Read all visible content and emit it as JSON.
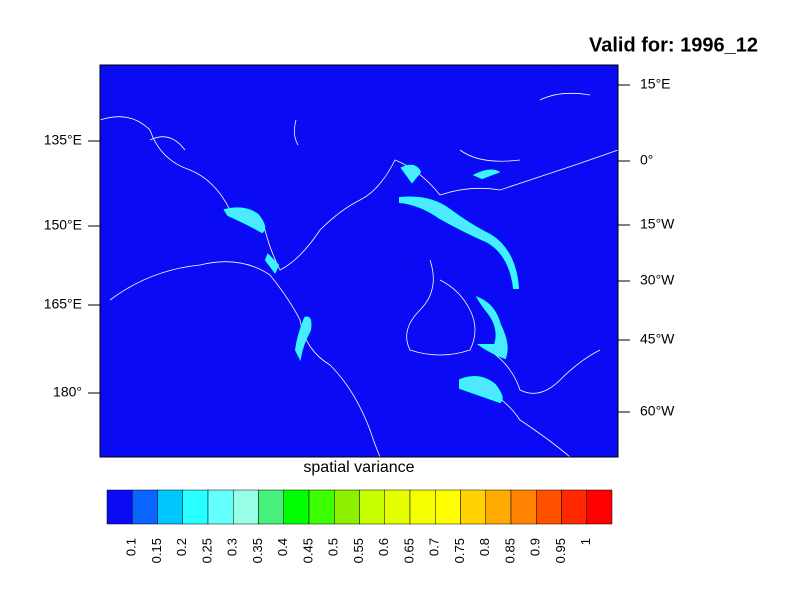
{
  "title": "Valid for: 1996_12",
  "map": {
    "left_labels": [
      "135°E",
      "150°E",
      "165°E",
      "180°"
    ],
    "right_labels": [
      "15°E",
      "0°",
      "15°W",
      "30°W",
      "45°W",
      "60°W"
    ],
    "caption": "spatial variance"
  },
  "colorbar": {
    "levels": [
      0.1,
      0.15,
      0.2,
      0.25,
      0.3,
      0.35,
      0.4,
      0.45,
      0.5,
      0.55,
      0.6,
      0.65,
      0.7,
      0.75,
      0.8,
      0.85,
      0.9,
      0.95,
      1
    ],
    "colors": [
      "#0a0af5",
      "#0a64ff",
      "#00c8ff",
      "#28ffff",
      "#64ffff",
      "#96ffe6",
      "#46f07a",
      "#00ff00",
      "#3cff00",
      "#8cf000",
      "#c8ff00",
      "#e6ff00",
      "#f5ff00",
      "#ffff00",
      "#ffd200",
      "#ffaa00",
      "#ff8200",
      "#ff5000",
      "#ff2800",
      "#ff0000"
    ]
  }
}
